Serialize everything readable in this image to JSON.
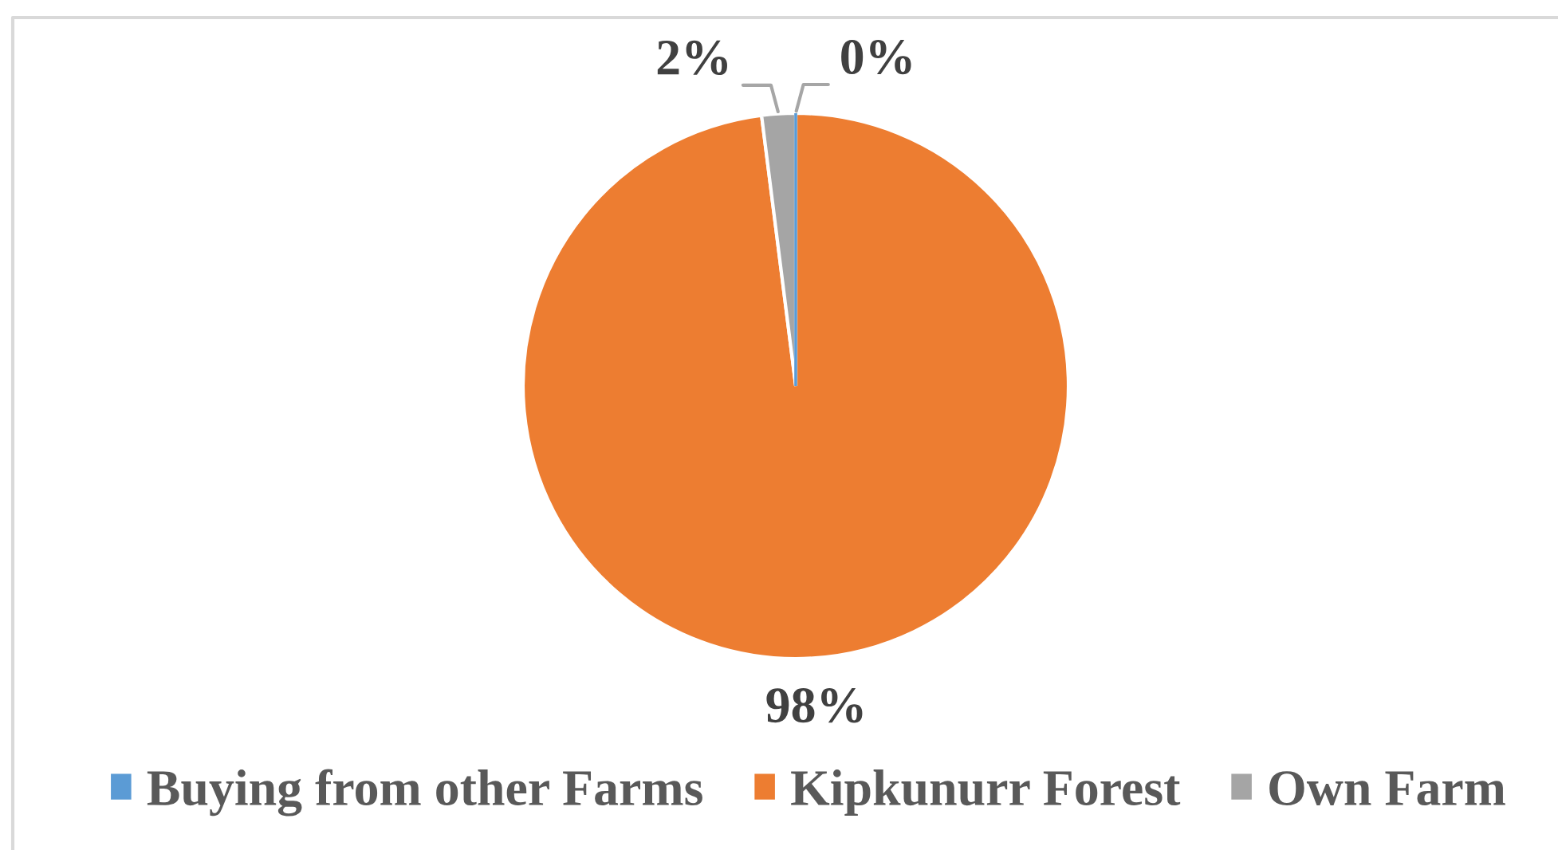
{
  "chart_data": {
    "type": "pie",
    "categories": [
      "Buying from other Farms",
      "Kipkunurr Forest",
      "Own Farm"
    ],
    "values": [
      0,
      98,
      2
    ],
    "colors": [
      "#5b9bd5",
      "#ed7d31",
      "#a5a5a5"
    ],
    "value_labels": [
      "0%",
      "98%",
      "2%"
    ],
    "legend": "bottom"
  }
}
